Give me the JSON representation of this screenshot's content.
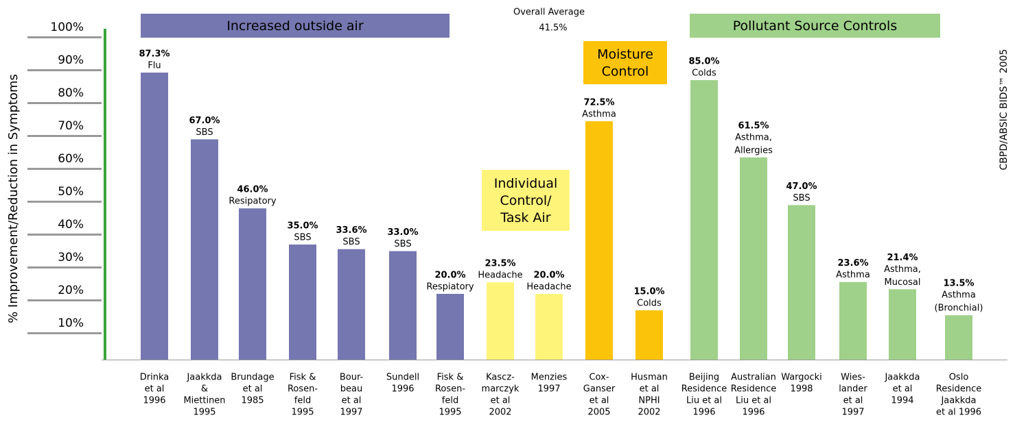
{
  "chart_data": {
    "type": "bar",
    "y_label": "% Improvement/Reduction in Symptoms",
    "credit": "CBPD/ABSIC BIDS™ 2005",
    "average": {
      "title": "Overall Average",
      "label": "41.5%"
    },
    "groups": [
      {
        "label": [
          "Increased outside air"
        ],
        "color": "#7577b0",
        "text_color": "#ffffff"
      },
      {
        "label": [
          "Individual",
          "Control/",
          "Task Air"
        ],
        "color": "#fff47a",
        "text_color": "#000000"
      },
      {
        "label": [
          "Moisture",
          "Control"
        ],
        "color": "#fcc30b",
        "text_color": "#000000"
      },
      {
        "label": [
          "Pollutant Source Controls"
        ],
        "color": "#9fd18a",
        "text_color": "#000000"
      }
    ],
    "bar_groups": [
      0,
      0,
      0,
      0,
      0,
      0,
      0,
      1,
      1,
      2,
      2,
      3,
      3,
      3,
      3,
      3,
      3
    ],
    "categories": [
      [
        "Drinka",
        "et al",
        "1996"
      ],
      [
        "Jaakkda",
        "&",
        "Miettinen",
        "1995"
      ],
      [
        "Brundage",
        "et al",
        "1985"
      ],
      [
        "Fisk &",
        "Rosen-",
        "feld",
        "1995"
      ],
      [
        "Bour-",
        "beau",
        "et al",
        "1997"
      ],
      [
        "Sundell",
        "1996"
      ],
      [
        "Fisk &",
        "Rosen-",
        "feld",
        "1995"
      ],
      [
        "Kascz-",
        "marczyk",
        "et al",
        "2002"
      ],
      [
        "Menzies",
        "1997"
      ],
      [
        "Cox-",
        "Ganser",
        "et al",
        "2005"
      ],
      [
        "Husman",
        "et al",
        "NPHI",
        "2002"
      ],
      [
        "Beijing",
        "Residence",
        "Liu et al",
        "1996"
      ],
      [
        "Australian",
        "Residence",
        "Liu et al",
        "1996"
      ],
      [
        "Wargocki",
        "1998"
      ],
      [
        "Wies-",
        "lander",
        "et al",
        "1997"
      ],
      [
        "Jaakkda",
        "et al",
        "1994"
      ],
      [
        "Oslo",
        "Residence",
        "Jaakkda",
        "et al 1996"
      ]
    ],
    "values": [
      87.3,
      67.0,
      46.0,
      35.0,
      33.6,
      33.0,
      20.0,
      23.5,
      20.0,
      72.5,
      15.0,
      85.0,
      61.5,
      47.0,
      23.6,
      21.4,
      13.5
    ],
    "value_labels": [
      "87.3%",
      "67.0%",
      "46.0%",
      "35.0%",
      "33.6%",
      "33.0%",
      "20.0%",
      "23.5%",
      "20.0%",
      "72.5%",
      "15.0%",
      "85.0%",
      "61.5%",
      "47.0%",
      "23.6%",
      "21.4%",
      "13.5%"
    ],
    "descriptions": [
      [
        "Flu"
      ],
      [
        "SBS"
      ],
      [
        "Resipatory"
      ],
      [
        "SBS"
      ],
      [
        "SBS"
      ],
      [
        "SBS"
      ],
      [
        "Respiatory"
      ],
      [
        "Headache"
      ],
      [
        "Headache"
      ],
      [
        "Asthma"
      ],
      [
        "Colds"
      ],
      [
        "Colds"
      ],
      [
        "Asthma,",
        "Allergies"
      ],
      [
        "SBS"
      ],
      [
        "Asthma"
      ],
      [
        "Asthma,",
        "Mucosal"
      ],
      [
        "Asthma",
        "(Bronchial)"
      ]
    ],
    "ylim": [
      0,
      100
    ],
    "yticks": [
      {
        "value": 10,
        "label": "10%"
      },
      {
        "value": 20,
        "label": "20%"
      },
      {
        "value": 30,
        "label": "30%"
      },
      {
        "value": 40,
        "label": "40%"
      },
      {
        "value": 50,
        "label": "50%"
      },
      {
        "value": 60,
        "label": "60%"
      },
      {
        "value": 70,
        "label": "70%"
      },
      {
        "value": 80,
        "label": "80%"
      },
      {
        "value": 90,
        "label": "90%"
      },
      {
        "value": 100,
        "label": "100%"
      }
    ],
    "axis_color": "#3aa53a"
  }
}
